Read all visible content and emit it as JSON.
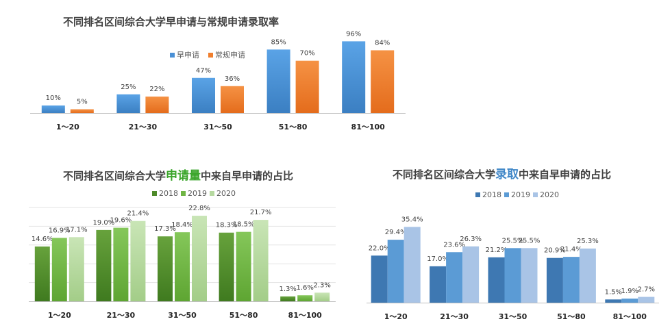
{
  "chart_data": [
    {
      "type": "bar",
      "title": "不同排名区间综合大学早申请与常规申请录取率",
      "categories": [
        "1～20",
        "21～30",
        "31～50",
        "51～80",
        "81～100"
      ],
      "series": [
        {
          "name": "早申请",
          "values": [
            10,
            25,
            47,
            85,
            96
          ],
          "labels": [
            "10%",
            "25%",
            "47%",
            "85%",
            "96%"
          ],
          "color": "#4a90d5"
        },
        {
          "name": "常规申请",
          "values": [
            5,
            22,
            36,
            70,
            84
          ],
          "labels": [
            "5%",
            "22%",
            "36%",
            "70%",
            "84%"
          ],
          "color": "#f07f2e"
        }
      ],
      "ylim": [
        0,
        100
      ],
      "legend": "top-center",
      "grid": false
    },
    {
      "type": "bar",
      "title": "不同排名区间综合大学申请量中来自早申请的占比",
      "title_parts": [
        "不同排名区间综合大学",
        "申请量",
        "中来自早申请的占比"
      ],
      "categories": [
        "1～20",
        "21～30",
        "31～50",
        "51～80",
        "81～100"
      ],
      "series": [
        {
          "name": "2018",
          "values": [
            14.6,
            19.0,
            17.3,
            18.3,
            1.3
          ],
          "labels": [
            "14.6%",
            "19.0%",
            "17.3%",
            "18.3%",
            "1.3%"
          ],
          "color": "#4e8a2a"
        },
        {
          "name": "2019",
          "values": [
            16.9,
            19.6,
            18.4,
            18.5,
            1.6
          ],
          "labels": [
            "16.9%",
            "19.6%",
            "18.4%",
            "18.5%",
            "1.6%"
          ],
          "color": "#6fb544"
        },
        {
          "name": "2020",
          "values": [
            17.1,
            21.4,
            22.8,
            21.7,
            2.3
          ],
          "labels": [
            "17.1%",
            "21.4%",
            "22.8%",
            "21.7%",
            "2.3%"
          ],
          "color": "#b6d9a0"
        }
      ],
      "ylim": [
        0,
        25
      ],
      "legend": "top-center",
      "grid": true
    },
    {
      "type": "bar",
      "title": "不同排名区间综合大学录取中来自早申请的占比",
      "title_parts": [
        "不同排名区间综合大学",
        "录取",
        "中来自早申请的占比"
      ],
      "categories": [
        "1～20",
        "21～30",
        "31～50",
        "51～80",
        "81～100"
      ],
      "series": [
        {
          "name": "2018",
          "values": [
            22.0,
            17.0,
            21.2,
            20.9,
            1.5
          ],
          "labels": [
            "22.0%",
            "17.0%",
            "21.2%",
            "20.9%",
            "1.5%"
          ],
          "color": "#3e78b2"
        },
        {
          "name": "2019",
          "values": [
            29.4,
            23.6,
            25.5,
            21.4,
            1.9
          ],
          "labels": [
            "29.4%",
            "23.6%",
            "25.5%",
            "21.4%",
            "1.9%"
          ],
          "color": "#5b9bd5"
        },
        {
          "name": "2020",
          "values": [
            35.4,
            26.3,
            25.5,
            25.3,
            2.7
          ],
          "labels": [
            "35.4%",
            "26.3%",
            "25.5%",
            "25.3%",
            "2.7%"
          ],
          "color": "#a9c4e6"
        }
      ],
      "ylim": [
        0,
        40
      ],
      "legend": "top-center",
      "grid": false
    }
  ]
}
